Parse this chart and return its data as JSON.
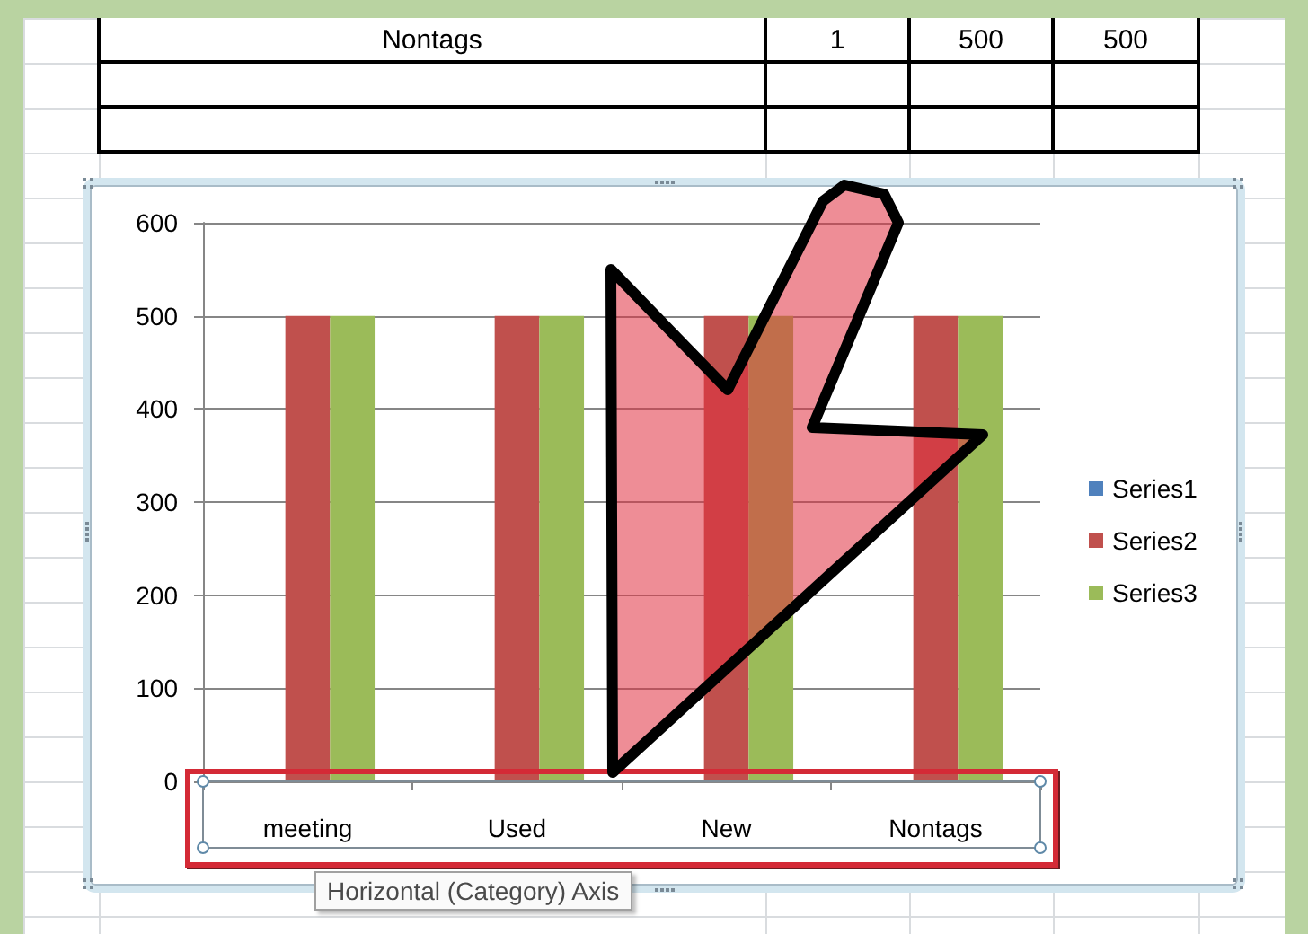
{
  "chart_data": [
    {
      "type": "other",
      "annotations": [
        "Nontags",
        "1",
        "500",
        "500"
      ]
    },
    {
      "type": "bar",
      "categories": [
        "meeting",
        "Used",
        "New",
        "Nontags"
      ],
      "series": [
        {
          "name": "Series1",
          "color": "#4f81bd",
          "values": [
            1,
            1,
            1,
            1
          ]
        },
        {
          "name": "Series2",
          "color": "#c0504d",
          "values": [
            500,
            500,
            500,
            500
          ]
        },
        {
          "name": "Series3",
          "color": "#9bbb59",
          "values": [
            500,
            500,
            500,
            500
          ]
        }
      ],
      "ylim": [
        0,
        600
      ],
      "yticks": [
        0,
        100,
        200,
        300,
        400,
        500,
        600
      ],
      "grid": "y",
      "legend": "right",
      "annotations": [
        "Horizontal (Category) Axis"
      ]
    }
  ]
}
